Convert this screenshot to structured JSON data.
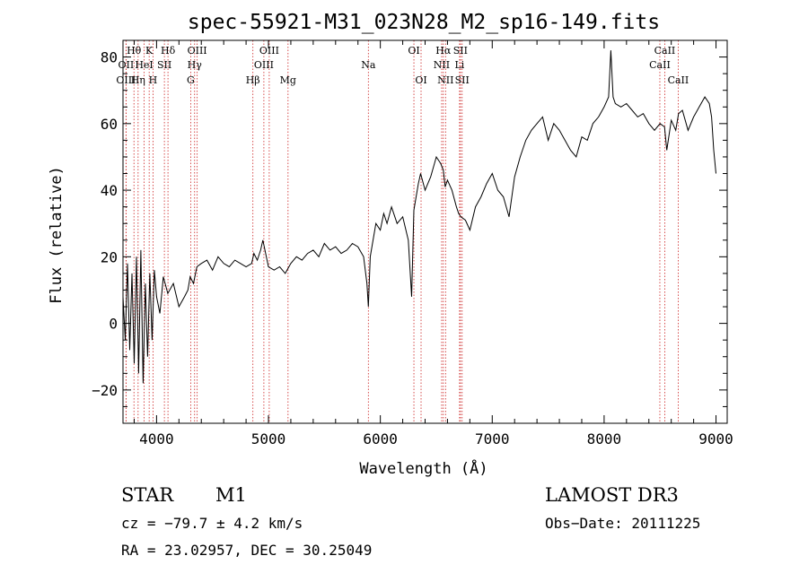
{
  "chart_data": {
    "type": "line",
    "title": "spec-55921-M31_023N28_M2_sp16-149.fits",
    "xlabel": "Wavelength (Å)",
    "ylabel": "Flux (relative)",
    "xlim": [
      3700,
      9100
    ],
    "ylim": [
      -30,
      85
    ],
    "x_ticks": [
      4000,
      5000,
      6000,
      7000,
      8000,
      9000
    ],
    "y_ticks": [
      -20,
      0,
      20,
      40,
      60,
      80
    ],
    "y_tick_labels": [
      "−20",
      "0",
      "20",
      "40",
      "60",
      "80"
    ],
    "series": [
      {
        "name": "flux",
        "x": [
          3700,
          3720,
          3740,
          3760,
          3780,
          3800,
          3820,
          3840,
          3860,
          3880,
          3900,
          3920,
          3940,
          3960,
          3980,
          4000,
          4030,
          4060,
          4100,
          4150,
          4200,
          4250,
          4280,
          4300,
          4330,
          4360,
          4400,
          4450,
          4500,
          4550,
          4600,
          4650,
          4700,
          4750,
          4800,
          4850,
          4870,
          4900,
          4930,
          4950,
          5000,
          5050,
          5100,
          5150,
          5200,
          5250,
          5300,
          5350,
          5400,
          5450,
          5500,
          5550,
          5600,
          5650,
          5700,
          5750,
          5800,
          5850,
          5880,
          5893,
          5910,
          5930,
          5960,
          6000,
          6030,
          6060,
          6100,
          6150,
          6200,
          6250,
          6280,
          6300,
          6320,
          6340,
          6360,
          6400,
          6450,
          6500,
          6540,
          6563,
          6580,
          6600,
          6640,
          6680,
          6700,
          6720,
          6760,
          6800,
          6850,
          6900,
          6950,
          7000,
          7050,
          7100,
          7150,
          7200,
          7250,
          7300,
          7350,
          7400,
          7450,
          7500,
          7550,
          7600,
          7650,
          7700,
          7750,
          7800,
          7850,
          7900,
          7950,
          8000,
          8040,
          8060,
          8080,
          8100,
          8150,
          8200,
          8250,
          8300,
          8350,
          8400,
          8450,
          8500,
          8540,
          8560,
          8600,
          8640,
          8665,
          8700,
          8750,
          8800,
          8850,
          8900,
          8940,
          8960,
          8980,
          9000
        ],
        "values": [
          8,
          -5,
          18,
          -8,
          15,
          -12,
          20,
          -15,
          22,
          -18,
          12,
          -10,
          15,
          -5,
          16,
          8,
          3,
          14,
          9,
          12,
          5,
          8,
          10,
          14,
          12,
          17,
          18,
          19,
          16,
          20,
          18,
          17,
          19,
          18,
          17,
          18,
          21,
          19,
          22,
          25,
          17,
          16,
          17,
          15,
          18,
          20,
          19,
          21,
          22,
          20,
          24,
          22,
          23,
          21,
          22,
          24,
          23,
          20,
          12,
          5,
          20,
          24,
          30,
          28,
          33,
          30,
          35,
          30,
          32,
          25,
          8,
          34,
          38,
          42,
          45,
          40,
          44,
          50,
          48,
          46,
          41,
          43,
          40,
          35,
          33,
          32,
          31,
          28,
          35,
          38,
          42,
          45,
          40,
          38,
          32,
          44,
          50,
          55,
          58,
          60,
          62,
          55,
          60,
          58,
          55,
          52,
          50,
          56,
          55,
          60,
          62,
          65,
          68,
          82,
          68,
          66,
          65,
          66,
          64,
          62,
          63,
          60,
          58,
          60,
          59,
          52,
          61,
          58,
          63,
          64,
          58,
          62,
          65,
          68,
          66,
          62,
          52,
          45
        ]
      }
    ],
    "spectral_lines": [
      {
        "label": "Hθ",
        "x": 3798,
        "row": 1
      },
      {
        "label": "OII",
        "x": 3727,
        "row": 2
      },
      {
        "label": "OIII",
        "x": 3727,
        "row": 3
      },
      {
        "label": "K",
        "x": 3934,
        "row": 1
      },
      {
        "label": "HeI",
        "x": 3889,
        "row": 2
      },
      {
        "label": "Hη",
        "x": 3835,
        "row": 3
      },
      {
        "label": "Hδ",
        "x": 4102,
        "row": 1
      },
      {
        "label": "SII",
        "x": 4070,
        "row": 2
      },
      {
        "label": "H",
        "x": 3968,
        "row": 3
      },
      {
        "label": "OIII",
        "x": 4363,
        "row": 1
      },
      {
        "label": "Hγ",
        "x": 4340,
        "row": 2
      },
      {
        "label": "G",
        "x": 4305,
        "row": 3
      },
      {
        "label": "OIII",
        "x": 5007,
        "row": 1
      },
      {
        "label": "OIII",
        "x": 4959,
        "row": 2
      },
      {
        "label": "Hβ",
        "x": 4861,
        "row": 3
      },
      {
        "label": "Mg",
        "x": 5175,
        "row": 3
      },
      {
        "label": "Na",
        "x": 5893,
        "row": 2
      },
      {
        "label": "OI",
        "x": 6300,
        "row": 1
      },
      {
        "label": "OI",
        "x": 6364,
        "row": 3
      },
      {
        "label": "Hα",
        "x": 6563,
        "row": 1
      },
      {
        "label": "SII",
        "x": 6716,
        "row": 1
      },
      {
        "label": "NII",
        "x": 6548,
        "row": 2
      },
      {
        "label": "Li",
        "x": 6708,
        "row": 2
      },
      {
        "label": "NII",
        "x": 6583,
        "row": 3
      },
      {
        "label": "SII",
        "x": 6731,
        "row": 3
      },
      {
        "label": "CaII",
        "x": 8542,
        "row": 1
      },
      {
        "label": "CaII",
        "x": 8498,
        "row": 2
      },
      {
        "label": "CaII",
        "x": 8662,
        "row": 3
      }
    ],
    "line_color": "#000000",
    "marker_color": "#cc2222"
  },
  "info": {
    "object_class": "STAR",
    "subclass": "M1",
    "survey": "LAMOST DR3",
    "cz": "cz = −79.7 ± 4.2 km/s",
    "obs_date": "Obs−Date: 20111225",
    "coords": "RA =  23.02957, DEC =  30.25049"
  }
}
